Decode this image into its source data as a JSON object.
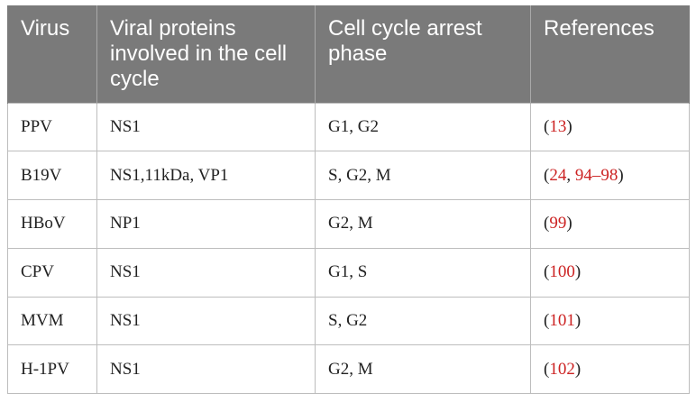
{
  "table": {
    "headers": [
      "Virus",
      "Viral proteins involved in the cell cycle",
      "Cell cycle arrest phase",
      "References"
    ],
    "rows": [
      {
        "virus": "PPV",
        "proteins": "NS1",
        "phase": "G1, G2",
        "ref_parts": [
          "(",
          "13",
          ")"
        ]
      },
      {
        "virus": "B19V",
        "proteins": "NS1,11kDa, VP1",
        "phase": "S, G2, M",
        "ref_parts": [
          "(",
          "24",
          ", ",
          "94–98",
          ")"
        ]
      },
      {
        "virus": "HBoV",
        "proteins": "NP1",
        "phase": "G2, M",
        "ref_parts": [
          "(",
          "99",
          ")"
        ]
      },
      {
        "virus": "CPV",
        "proteins": "NS1",
        "phase": "G1, S",
        "ref_parts": [
          "(",
          "100",
          ")"
        ]
      },
      {
        "virus": "MVM",
        "proteins": "NS1",
        "phase": "S, G2",
        "ref_parts": [
          "(",
          "101",
          ")"
        ]
      },
      {
        "virus": "H-1PV",
        "proteins": "NS1",
        "phase": "G2, M",
        "ref_parts": [
          "(",
          "102",
          ")"
        ]
      }
    ]
  },
  "colors": {
    "header_bg": "#7a7a7a",
    "header_text": "#ffffff",
    "reference_link": "#cc2222",
    "border": "#bdbdbd"
  }
}
